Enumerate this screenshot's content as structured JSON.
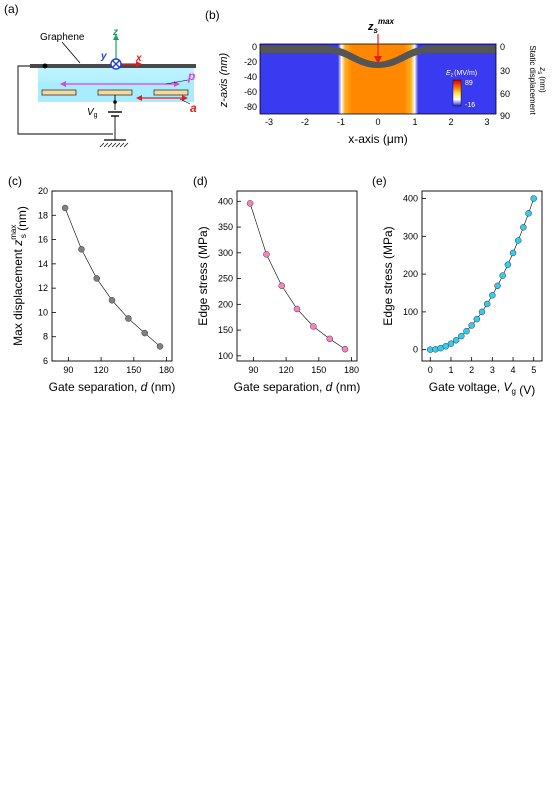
{
  "panels": {
    "a": {
      "label": "(a)",
      "graphene_label": "Graphene",
      "axis_z": "z",
      "axis_y": "y",
      "axis_x": "x",
      "p_label": "p",
      "a_label": "a",
      "vg_label": "V",
      "vg_sub": "g"
    },
    "b": {
      "label": "(b)",
      "zs_label": "z",
      "zs_sub": "s",
      "zs_sup": "max",
      "ylabel_left": "z-axis (nm)",
      "ylabel_right_1": "Static displacement",
      "ylabel_right_2": "z",
      "ylabel_right_sub": "s",
      "ylabel_right_unit": "(nm)",
      "xlabel": "x-axis (μm)",
      "cbar_title": "E",
      "cbar_sub": "z",
      "cbar_unit": "(MV/m)",
      "cbar_max": "89",
      "cbar_min": "-16",
      "xticks": [
        "-3",
        "-2",
        "-1",
        "0",
        "1",
        "2",
        "3"
      ],
      "yticks_left": [
        "0",
        "-20",
        "-40",
        "-60",
        "-80"
      ],
      "yticks_right": [
        "0",
        "30",
        "60",
        "90"
      ]
    },
    "c": {
      "label": "(c)"
    },
    "d": {
      "label": "(d)"
    },
    "e": {
      "label": "(e)"
    }
  },
  "chart_data": [
    {
      "id": "c",
      "type": "scatter",
      "xlabel": "Gate separation, d (nm)",
      "ylabel": "Max displacement z_s^max (nm)",
      "xlim": [
        75,
        185
      ],
      "ylim": [
        6,
        20
      ],
      "xticks": [
        90,
        120,
        150,
        180
      ],
      "yticks": [
        6,
        8,
        10,
        12,
        14,
        16,
        18,
        20
      ],
      "color": "#808080",
      "x": [
        87,
        102,
        116,
        130,
        145,
        160,
        174
      ],
      "y": [
        18.6,
        15.2,
        12.8,
        11.0,
        9.5,
        8.3,
        7.2
      ]
    },
    {
      "id": "d",
      "type": "scatter",
      "xlabel": "Gate separation, d (nm)",
      "ylabel": "Edge stress (MPa)",
      "xlim": [
        75,
        185
      ],
      "ylim": [
        90,
        420
      ],
      "xticks": [
        90,
        120,
        150,
        180
      ],
      "yticks": [
        100,
        150,
        200,
        250,
        300,
        350,
        400
      ],
      "color": "#ff80c0",
      "x": [
        87,
        102,
        116,
        130,
        145,
        160,
        174
      ],
      "y": [
        396,
        297,
        236,
        191,
        157,
        133,
        113
      ]
    },
    {
      "id": "e",
      "type": "scatter",
      "xlabel": "Gate voltage, V_g (V)",
      "ylabel": "Edge stress (MPa)",
      "xlim": [
        -0.4,
        5.4
      ],
      "ylim": [
        -30,
        420
      ],
      "xticks": [
        0,
        1,
        2,
        3,
        4,
        5
      ],
      "yticks": [
        0,
        100,
        200,
        300,
        400
      ],
      "color": "#33ccee",
      "x": [
        0,
        0.25,
        0.5,
        0.75,
        1.0,
        1.25,
        1.5,
        1.75,
        2.0,
        2.25,
        2.5,
        2.75,
        3.0,
        3.25,
        3.5,
        3.75,
        4.0,
        4.25,
        4.5,
        4.75,
        5.0
      ],
      "y": [
        0,
        1,
        4,
        9,
        16,
        25,
        36,
        49,
        64,
        81,
        100,
        121,
        144,
        169,
        196,
        225,
        256,
        289,
        324,
        361,
        400
      ]
    }
  ]
}
